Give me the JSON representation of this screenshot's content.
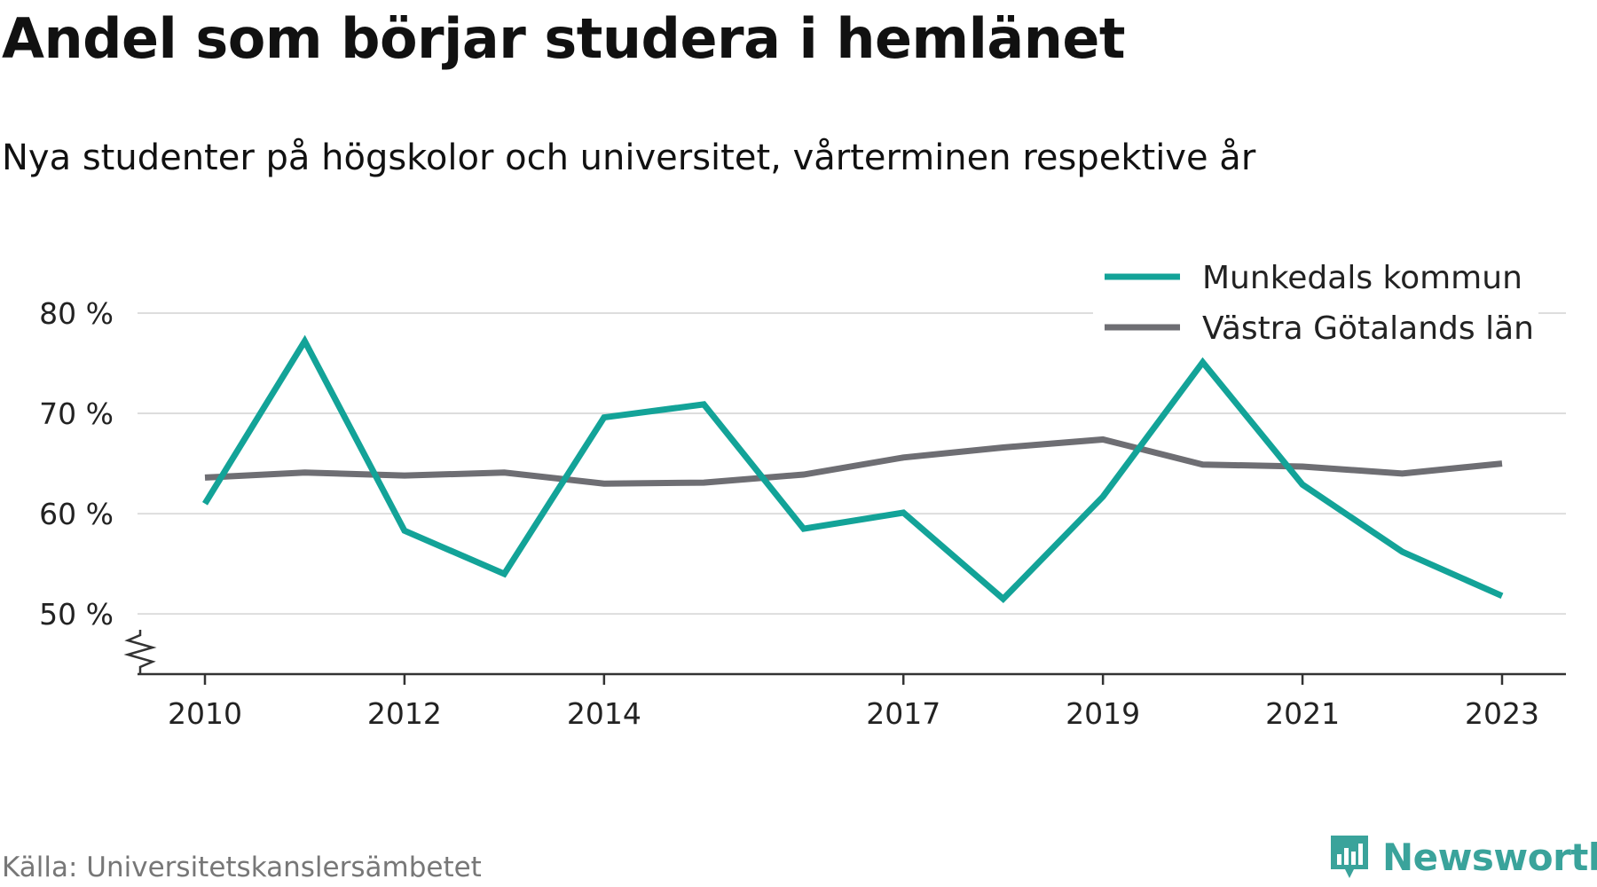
{
  "header": {
    "title": "Andel som börjar studera i hemlänet",
    "subtitle": "Nya studenter på högskolor och universitet, vårterminen respektive år"
  },
  "footer": {
    "source": "Källa: Universitetskanslersämbetet",
    "brand": "Newsworthy",
    "brand_icon": "newsworthy-logo-icon",
    "brand_color": "#3aa39b"
  },
  "chart_data": {
    "type": "line",
    "title": "Andel som börjar studera i hemlänet",
    "subtitle": "Nya studenter på högskolor och universitet, vårterminen respektive år",
    "xlabel": "",
    "ylabel": "",
    "x": [
      2010,
      2011,
      2012,
      2013,
      2014,
      2015,
      2016,
      2017,
      2018,
      2019,
      2020,
      2021,
      2022,
      2023
    ],
    "x_ticks": [
      2010,
      2012,
      2014,
      2017,
      2019,
      2021,
      2023
    ],
    "x_tick_labels": [
      "2010",
      "2012",
      "2014",
      "2017",
      "2019",
      "2021",
      "2023"
    ],
    "y_ticks": [
      50,
      60,
      70,
      80
    ],
    "y_tick_labels": [
      "50 %",
      "60 %",
      "70 %",
      "80 %"
    ],
    "ylim": [
      44,
      80
    ],
    "y_axis_break": true,
    "grid": "horizontal",
    "legend_position": "top-right",
    "series": [
      {
        "name": "Munkedals kommun",
        "color": "#13a398",
        "values": [
          61,
          77.2,
          58.3,
          54,
          69.6,
          70.9,
          58.5,
          60.1,
          51.5,
          61.7,
          75.1,
          62.9,
          56.2,
          51.8
        ]
      },
      {
        "name": "Västra Götalands län",
        "color": "#6e6e73",
        "values": [
          63.6,
          64.1,
          63.8,
          64.1,
          63,
          63.1,
          63.9,
          65.6,
          66.6,
          67.4,
          64.9,
          64.7,
          64,
          65
        ]
      }
    ]
  }
}
